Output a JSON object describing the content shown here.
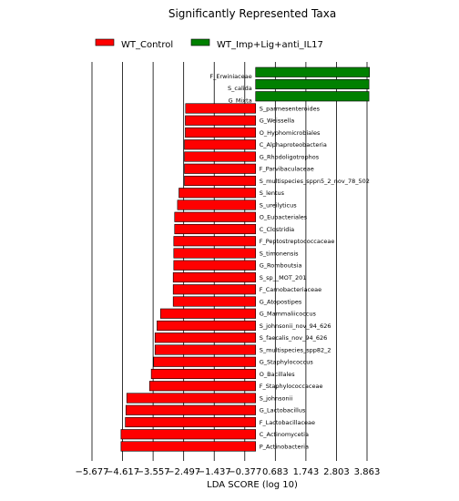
{
  "chart_data": {
    "type": "bar",
    "orientation": "horizontal",
    "title": "Significantly Represented Taxa",
    "xlabel": "LDA SCORE (log 10)",
    "ylabel": "",
    "xlim": [
      -5.677,
      5.0
    ],
    "grid": "vertical",
    "legend_position": "top",
    "xticks": [
      -5.677,
      -4.617,
      -3.557,
      -2.497,
      -1.437,
      -0.377,
      0.683,
      1.743,
      2.803,
      3.863
    ],
    "xtick_labels": [
      "−5.677",
      "−4.617",
      "−3.557",
      "−2.497",
      "−1.437",
      "−0.377",
      "0.683",
      "1.743",
      "2.803",
      "3.863"
    ],
    "series": [
      {
        "name": "WT_Control",
        "color": "#ff0000"
      },
      {
        "name": "WT_Imp+Lig+anti_IL17",
        "color": "#008000"
      }
    ],
    "bars": [
      {
        "label": "F_Erwiniaceae",
        "value": 3.95,
        "series": 1
      },
      {
        "label": "S_calida",
        "value": 3.93,
        "series": 1
      },
      {
        "label": "G_Mixta",
        "value": 3.93,
        "series": 1
      },
      {
        "label": "S_parmesenteroides",
        "value": -2.43,
        "series": 0
      },
      {
        "label": "G_Weissella",
        "value": -2.44,
        "series": 0
      },
      {
        "label": "O_Hyphomicrobiales",
        "value": -2.44,
        "series": 0
      },
      {
        "label": "C_Alphaproteobacteria",
        "value": -2.47,
        "series": 0
      },
      {
        "label": "G_Rhodoligotrophos",
        "value": -2.47,
        "series": 0
      },
      {
        "label": "F_Parvibaculaceae",
        "value": -2.47,
        "series": 0
      },
      {
        "label": "S_multispecies_sppn5_2_nov_78_502",
        "value": -2.47,
        "series": 0
      },
      {
        "label": "S_lentus",
        "value": -2.66,
        "series": 0
      },
      {
        "label": "S_ureilyticus",
        "value": -2.71,
        "series": 0
      },
      {
        "label": "O_Eubacteriales",
        "value": -2.81,
        "series": 0
      },
      {
        "label": "C_Clostridia",
        "value": -2.81,
        "series": 0
      },
      {
        "label": "F_Peptostreptococcaceae",
        "value": -2.84,
        "series": 0
      },
      {
        "label": "S_timonensis",
        "value": -2.84,
        "series": 0
      },
      {
        "label": "G_Romboutsia",
        "value": -2.84,
        "series": 0
      },
      {
        "label": "S_sp__MOT_201",
        "value": -2.86,
        "series": 0
      },
      {
        "label": "F_Carnobacteriaceae",
        "value": -2.86,
        "series": 0
      },
      {
        "label": "G_Atopostipes",
        "value": -2.86,
        "series": 0
      },
      {
        "label": "G_Mammaliicoccus",
        "value": -3.3,
        "series": 0
      },
      {
        "label": "S_johnsonii_nov_94_626",
        "value": -3.42,
        "series": 0
      },
      {
        "label": "S_faecalis_nov_94_626",
        "value": -3.49,
        "series": 0
      },
      {
        "label": "S_multispecies_spp82_2",
        "value": -3.49,
        "series": 0
      },
      {
        "label": "G_Staphylococcus",
        "value": -3.54,
        "series": 0
      },
      {
        "label": "O_Bacillales",
        "value": -3.62,
        "series": 0
      },
      {
        "label": "F_Staphylococcaceae",
        "value": -3.68,
        "series": 0
      },
      {
        "label": "S_johnsonii",
        "value": -4.47,
        "series": 0
      },
      {
        "label": "G_Lactobacillus",
        "value": -4.5,
        "series": 0
      },
      {
        "label": "F_Lactobacillaceae",
        "value": -4.52,
        "series": 0
      },
      {
        "label": "C_Actinomycetia",
        "value": -4.67,
        "series": 0
      },
      {
        "label": "P_Actinobacteria",
        "value": -4.67,
        "series": 0
      }
    ]
  }
}
